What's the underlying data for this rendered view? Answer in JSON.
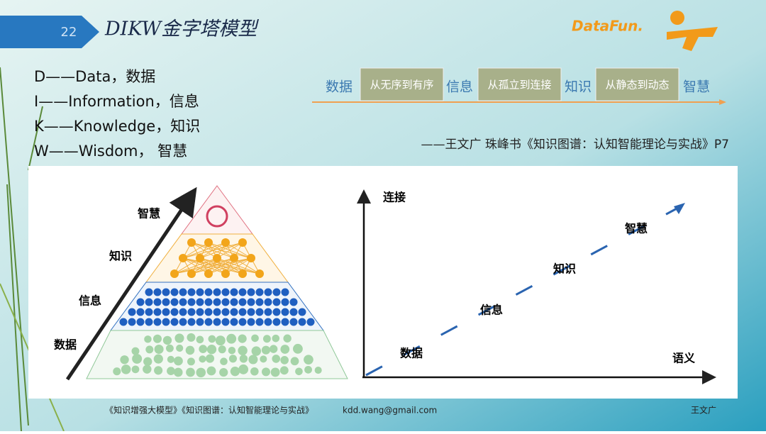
{
  "slide_number": "22",
  "title": "DIKW金字塔模型",
  "logo": "DataFun.",
  "definitions": [
    "D——Data，数据",
    "I——Information，信息",
    "K——Knowledge，知识",
    "W——Wisdom， 智慧"
  ],
  "flow": {
    "stages": [
      "数据",
      "信息",
      "知识",
      "智慧"
    ],
    "transitions": [
      "从无序到有序",
      "从孤立到连接",
      "从静态到动态"
    ]
  },
  "citation": "——王文广 珠峰书《知识图谱：认知智能理论与实战》P7",
  "pyramid": {
    "labels": [
      "智慧",
      "知识",
      "信息",
      "数据"
    ]
  },
  "graph": {
    "y_axis": "连接",
    "x_axis": "语义",
    "points": [
      "数据",
      "信息",
      "知识",
      "智慧"
    ]
  },
  "footer": {
    "books": "《知识增强大模型》《知识图谱：认知智能理论与实战》",
    "email": "kdd.wang@gmail.com",
    "author": "王文广"
  }
}
